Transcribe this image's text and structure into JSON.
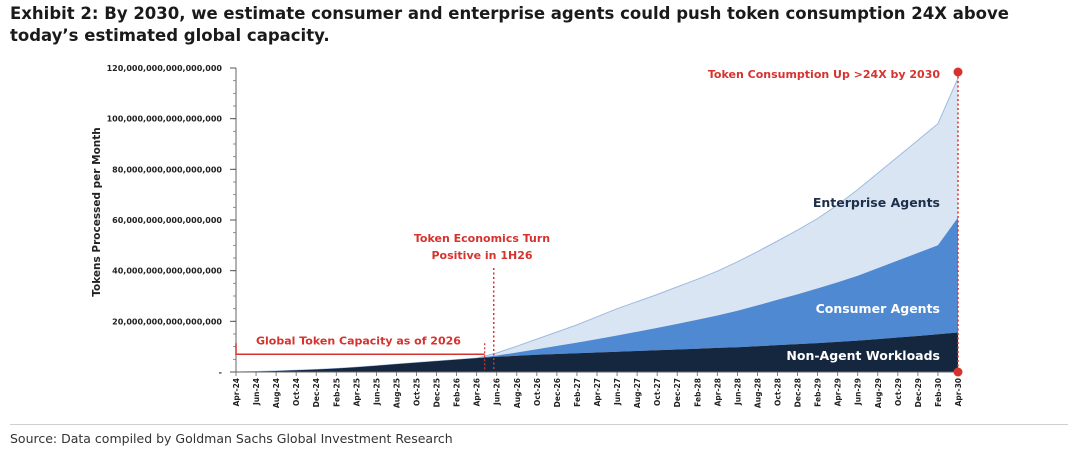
{
  "title": "Exhibit 2: By 2030, we estimate consumer and enterprise agents could push token consumption 24X above today’s estimated global capacity.",
  "source": "Source: Data compiled by Goldman Sachs Global Investment Research",
  "colors": {
    "non_agent": "#15263f",
    "consumer": "#4f89d2",
    "enterprise": "#dae5f3",
    "enterprise_line": "#9dbbe0",
    "annotation": "#d6332e"
  },
  "chart_data": {
    "type": "area",
    "stacked": true,
    "ylabel": "Tokens Processed per Month",
    "ylim": [
      0,
      120000000000000000000
    ],
    "yticks": [
      0,
      20000000000000000000,
      40000000000000000000,
      60000000000000000000,
      80000000000000000000,
      100000000000000000000,
      120000000000000000000
    ],
    "ytick_labels": [
      "-",
      "20,000,000,000,000,000",
      "40,000,000,000,000,000",
      "60,000,000,000,000,000",
      "80,000,000,000,000,000",
      "100,000,000,000,000,000",
      "120,000,000,000,000,000"
    ],
    "x": [
      "Apr-24",
      "Jun-24",
      "Aug-24",
      "Oct-24",
      "Dec-24",
      "Feb-25",
      "Apr-25",
      "Jun-25",
      "Aug-25",
      "Oct-25",
      "Dec-25",
      "Feb-26",
      "Apr-26",
      "Jun-26",
      "Aug-26",
      "Oct-26",
      "Dec-26",
      "Feb-27",
      "Apr-27",
      "Jun-27",
      "Aug-27",
      "Oct-27",
      "Dec-27",
      "Feb-28",
      "Apr-28",
      "Jun-28",
      "Aug-28",
      "Oct-28",
      "Dec-28",
      "Feb-29",
      "Apr-29",
      "Jun-29",
      "Aug-29",
      "Oct-29",
      "Dec-29",
      "Feb-30",
      "Apr-30"
    ],
    "series": [
      {
        "name": "Non-Agent Workloads",
        "values": [
          0,
          2e+17,
          4e+17,
          7e+17,
          1e+18,
          1.4e+18,
          1.9e+18,
          2.5e+18,
          3.1e+18,
          3.7e+18,
          4.3e+18,
          4.9e+18,
          5.5e+18,
          6e+18,
          6.4e+18,
          6.8e+18,
          7.1e+18,
          7.4e+18,
          7.7e+18,
          8e+18,
          8.3e+18,
          8.6e+18,
          8.9e+18,
          9.2e+18,
          9.5e+18,
          9.8e+18,
          1.02e+19,
          1.06e+19,
          1.1e+19,
          1.14e+19,
          1.19e+19,
          1.24e+19,
          1.3e+19,
          1.36e+19,
          1.42e+19,
          1.49e+19,
          1.56e+19
        ]
      },
      {
        "name": "Consumer Agents",
        "values": [
          0,
          0,
          0,
          0,
          0,
          0,
          0,
          0,
          0,
          0,
          0,
          0,
          0,
          5e+17,
          1.3e+18,
          2.2e+18,
          3.2e+18,
          4.2e+18,
          5.3e+18,
          6.4e+18,
          7.6e+18,
          8.8e+18,
          1.01e+19,
          1.14e+19,
          1.28e+19,
          1.44e+19,
          1.61e+19,
          1.79e+19,
          1.97e+19,
          2.16e+19,
          2.35e+19,
          2.56e+19,
          2.8e+19,
          3.04e+19,
          3.28e+19,
          3.51e+19,
          4.54e+19
        ]
      },
      {
        "name": "Enterprise Agents",
        "values": [
          0,
          0,
          0,
          0,
          0,
          0,
          0,
          0,
          0,
          0,
          0,
          0,
          0,
          1e+18,
          2.5e+18,
          4e+18,
          5.5e+18,
          7e+18,
          8.8e+18,
          1.06e+19,
          1.19e+19,
          1.32e+19,
          1.46e+19,
          1.6e+19,
          1.75e+19,
          1.93e+19,
          2.12e+19,
          2.32e+19,
          2.53e+19,
          2.76e+19,
          3.06e+19,
          3.4e+19,
          3.75e+19,
          4.1e+19,
          4.45e+19,
          4.8e+19,
          5.5e+19
        ]
      }
    ],
    "annotations": {
      "capacity_label": "Global Token Capacity as of 2026",
      "capacity_value": 7000000000000000000,
      "turn_label_1": "Token Economics Turn",
      "turn_label_2": "Positive in 1H26",
      "turn_x": "Jun-26",
      "up_label": "Token Consumption Up >24X by 2030",
      "up_x": "Apr-30"
    },
    "grid": false,
    "legend": "inline labels"
  }
}
